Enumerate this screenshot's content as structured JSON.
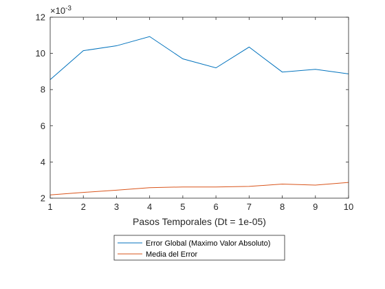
{
  "chart_data": {
    "type": "line",
    "title": "",
    "xlabel": "Pasos Temporales (Dt = 1e-05)",
    "ylabel": "",
    "x": [
      1,
      2,
      3,
      4,
      5,
      6,
      7,
      8,
      9,
      10
    ],
    "xlim": [
      1,
      10
    ],
    "ylim": [
      0.002,
      0.012
    ],
    "y_exponent_label": "×10",
    "y_exponent_power": "-3",
    "x_ticks": [
      1,
      2,
      3,
      4,
      5,
      6,
      7,
      8,
      9,
      10
    ],
    "x_tick_labels": [
      "1",
      "2",
      "3",
      "4",
      "5",
      "6",
      "7",
      "8",
      "9",
      "10"
    ],
    "y_ticks": [
      0.002,
      0.004,
      0.006,
      0.008,
      0.01,
      0.012
    ],
    "y_tick_labels": [
      "2",
      "4",
      "6",
      "8",
      "10",
      "12"
    ],
    "grid": false,
    "legend_placement": "bottom-center-outside",
    "series": [
      {
        "name": "Error Global (Maximo Valor Absoluto)",
        "color": "#0072BD",
        "values": [
          0.00855,
          0.01015,
          0.01042,
          0.01093,
          0.0097,
          0.0092,
          0.01035,
          0.00897,
          0.00912,
          0.00887
        ]
      },
      {
        "name": "Media del Error",
        "color": "#D95319",
        "values": [
          0.00218,
          0.00232,
          0.00244,
          0.00258,
          0.00262,
          0.00262,
          0.00265,
          0.00278,
          0.00272,
          0.00287
        ]
      }
    ]
  }
}
